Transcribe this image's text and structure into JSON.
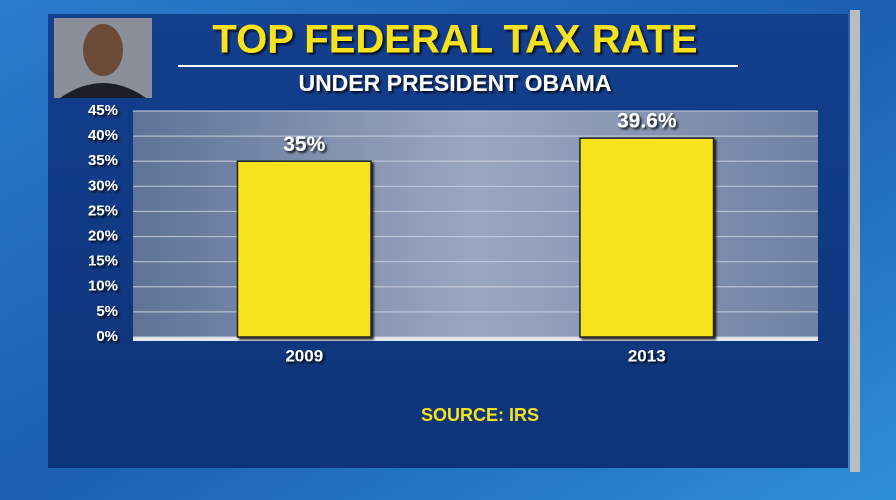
{
  "chart_data": {
    "type": "bar",
    "title": "TOP FEDERAL TAX RATE",
    "subtitle": "UNDER PRESIDENT OBAMA",
    "categories": [
      "2009",
      "2013"
    ],
    "values": [
      35,
      39.6
    ],
    "value_labels": [
      "35%",
      "39.6%"
    ],
    "color": "#f7e21b",
    "ylim": [
      0,
      45
    ],
    "yticks": [
      {
        "value": 0,
        "label": "0%"
      },
      {
        "value": 5,
        "label": "5%"
      },
      {
        "value": 10,
        "label": "10%"
      },
      {
        "value": 15,
        "label": "15%"
      },
      {
        "value": 20,
        "label": "20%"
      },
      {
        "value": 25,
        "label": "25%"
      },
      {
        "value": 30,
        "label": "30%"
      },
      {
        "value": 35,
        "label": "35%"
      },
      {
        "value": 40,
        "label": "40%"
      },
      {
        "value": 45,
        "label": "45%"
      }
    ],
    "grid": true,
    "source": "SOURCE: IRS"
  }
}
